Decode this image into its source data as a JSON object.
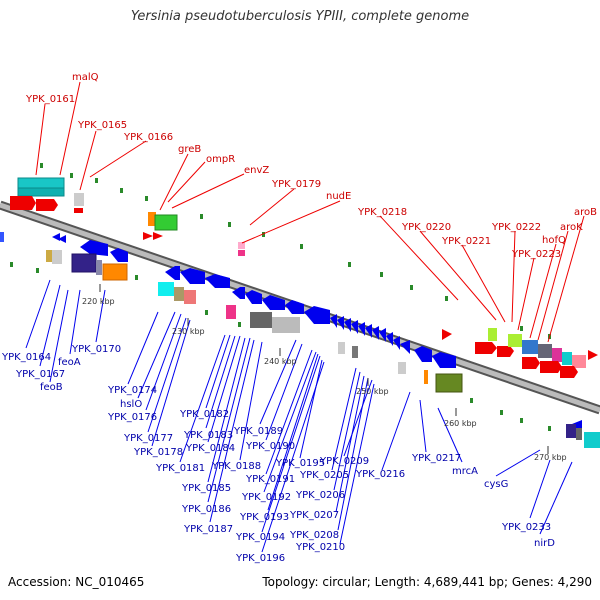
{
  "title": "Yersinia pseudotuberculosis YPIII, complete genome",
  "footer": {
    "accession": "Accession: NC_010465",
    "stats": "Topology: circular; Length: 4,689,441 bp; Genes: 4,290"
  },
  "ticks": [
    "220 kbp",
    "230 kbp",
    "240 kbp",
    "250 kbp",
    "260 kbp",
    "270 kbp"
  ],
  "top_labels": [
    "malQ",
    "YPK_0161",
    "YPK_0165",
    "YPK_0166",
    "greB",
    "ompR",
    "envZ",
    "YPK_0179",
    "nudE",
    "YPK_0218",
    "YPK_0220",
    "YPK_0221",
    "YPK_0222",
    "YPK_0223",
    "hofQ",
    "aroK",
    "aroB"
  ],
  "bottom_labels": [
    "YPK_0164",
    "YPK_0167",
    "feoB",
    "feoA",
    "YPK_0170",
    "YPK_0174",
    "hslO",
    "YPK_0176",
    "YPK_0177",
    "YPK_0178",
    "YPK_0181",
    "YPK_0182",
    "YPK_0183",
    "YPK_0184",
    "YPK_0185",
    "YPK_0186",
    "YPK_0187",
    "YPK_0188",
    "YPK_0189",
    "YPK_0190",
    "YPK_0191",
    "YPK_0192",
    "YPK_0193",
    "YPK_0194",
    "YPK_0195",
    "YPK_0196",
    "YPK_0205",
    "YPK_0206",
    "YPK_0207",
    "YPK_0208",
    "YPK_0209",
    "YPK_0210",
    "YPK_0216",
    "YPK_0217",
    "mrcA",
    "cysG",
    "YPK_0233",
    "nirD"
  ],
  "colors": {
    "backbone": "#888888",
    "forward": "#ee0000",
    "reverse": "#0000ee",
    "top_label": "#cc0000",
    "bottom_label": "#0000aa",
    "dots": "#228b22"
  }
}
